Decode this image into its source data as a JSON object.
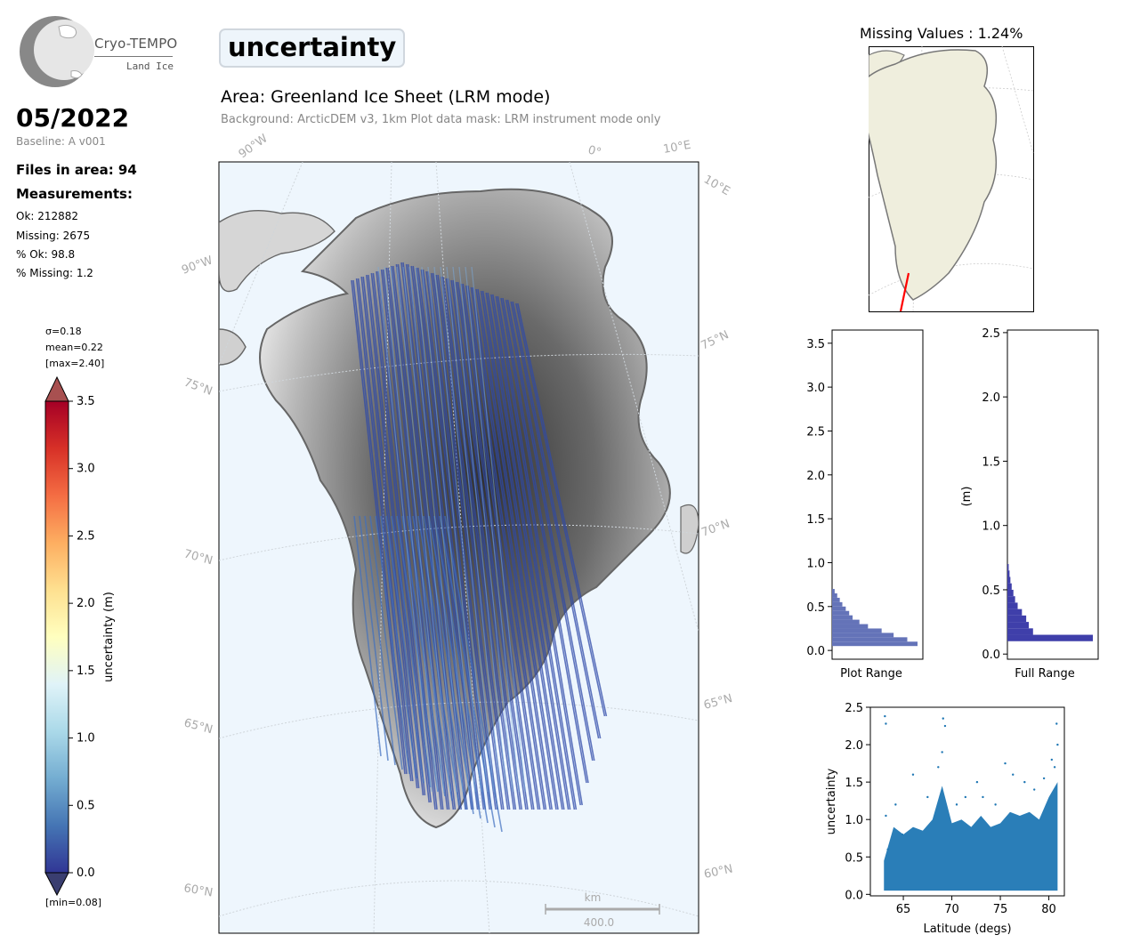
{
  "header": {
    "logo_text": "Cryo-TEMPO",
    "logo_sub": "Land Ice",
    "date": "05/2022",
    "baseline": "Baseline: A v001",
    "files": "Files in area: 94",
    "measurements": "Measurements:",
    "stats": [
      "Ok: 212882",
      "Missing: 2675",
      "% Ok: 98.8",
      "% Missing: 1.2"
    ],
    "parameter": "uncertainty",
    "area": "Area: Greenland Ice Sheet (LRM mode)",
    "background": "Background: ArcticDEM v3, 1km   Plot data mask: LRM instrument mode only"
  },
  "colorbar": {
    "sigma": "σ=0.18",
    "mean": "mean=0.22",
    "max": "[max=2.40]",
    "min": "[min=0.08]",
    "label": "uncertainty (m)",
    "ticks": [
      "0.0",
      "0.5",
      "1.0",
      "1.5",
      "2.0",
      "2.5",
      "3.0",
      "3.5"
    ],
    "colors": [
      "#313695",
      "#4575b4",
      "#74add1",
      "#abd9e9",
      "#e0f3f8",
      "#ffffbf",
      "#fee090",
      "#fdae61",
      "#f46d43",
      "#d73027",
      "#a50026"
    ]
  },
  "map": {
    "lat_labels": [
      "60°N",
      "65°N",
      "70°N",
      "75°N"
    ],
    "lat_labels_right": [
      "60°N",
      "65°N",
      "70°N",
      "75°N"
    ],
    "lon_labels": [
      "90°W",
      "90°W",
      "0°",
      "10°E",
      "10°E"
    ],
    "scale_unit": "km",
    "scale_value": "400.0",
    "track_color": "#2f4aa8"
  },
  "inset": {
    "title": "Missing Values : 1.24%",
    "land_color": "#efeedd",
    "missing_color": "#ff0000"
  },
  "chart_data": [
    {
      "type": "bar",
      "orientation": "horizontal",
      "xlabel": "Plot Range",
      "ylabel": "",
      "ylim": [
        -0.1,
        3.65
      ],
      "yticks": [
        "0.0",
        "0.5",
        "1.0",
        "1.5",
        "2.0",
        "2.5",
        "3.0",
        "3.5"
      ],
      "bins": [
        0.05,
        0.1,
        0.15,
        0.2,
        0.25,
        0.3,
        0.35,
        0.4,
        0.45,
        0.5,
        0.55,
        0.6,
        0.65
      ],
      "values": [
        1.0,
        0.88,
        0.72,
        0.58,
        0.42,
        0.32,
        0.24,
        0.2,
        0.16,
        0.12,
        0.09,
        0.06,
        0.03
      ]
    },
    {
      "type": "bar",
      "orientation": "horizontal",
      "xlabel": "Full Range",
      "ylabel": "(m)",
      "ylim": [
        -0.04,
        2.52
      ],
      "yticks": [
        "0.0",
        "0.5",
        "1.0",
        "1.5",
        "2.0",
        "2.5"
      ],
      "bins": [
        0.1,
        0.15,
        0.2,
        0.25,
        0.3,
        0.35,
        0.4,
        0.45,
        0.5,
        0.55,
        0.6,
        0.65
      ],
      "values": [
        1.0,
        0.3,
        0.25,
        0.22,
        0.17,
        0.12,
        0.09,
        0.07,
        0.05,
        0.035,
        0.025,
        0.015
      ]
    },
    {
      "type": "scatter",
      "xlabel": "Latitude (degs)",
      "ylabel": "uncertainty",
      "xlim": [
        61.6,
        81.6
      ],
      "ylim": [
        -0.02,
        2.5
      ],
      "xticks": [
        "65",
        "70",
        "75",
        "80"
      ],
      "yticks": [
        "0.0",
        "0.5",
        "1.0",
        "1.5",
        "2.0",
        "2.5"
      ],
      "color": "#1f77b4",
      "points": [
        [
          63.1,
          2.38
        ],
        [
          63.2,
          2.28
        ],
        [
          63.2,
          1.05
        ],
        [
          63.4,
          0.6
        ],
        [
          64.2,
          1.2
        ],
        [
          64.9,
          0.8
        ],
        [
          66.0,
          1.6
        ],
        [
          67.5,
          1.3
        ],
        [
          68.6,
          1.7
        ],
        [
          69.1,
          2.35
        ],
        [
          69.3,
          2.25
        ],
        [
          69.0,
          1.9
        ],
        [
          70.5,
          1.2
        ],
        [
          71.4,
          1.3
        ],
        [
          72.6,
          1.5
        ],
        [
          73.2,
          1.3
        ],
        [
          74.5,
          1.2
        ],
        [
          75.5,
          1.75
        ],
        [
          76.3,
          1.6
        ],
        [
          77.5,
          1.5
        ],
        [
          78.5,
          1.4
        ],
        [
          79.5,
          1.55
        ],
        [
          80.3,
          1.8
        ],
        [
          80.8,
          2.28
        ],
        [
          80.9,
          2.0
        ],
        [
          80.6,
          1.7
        ]
      ]
    }
  ]
}
